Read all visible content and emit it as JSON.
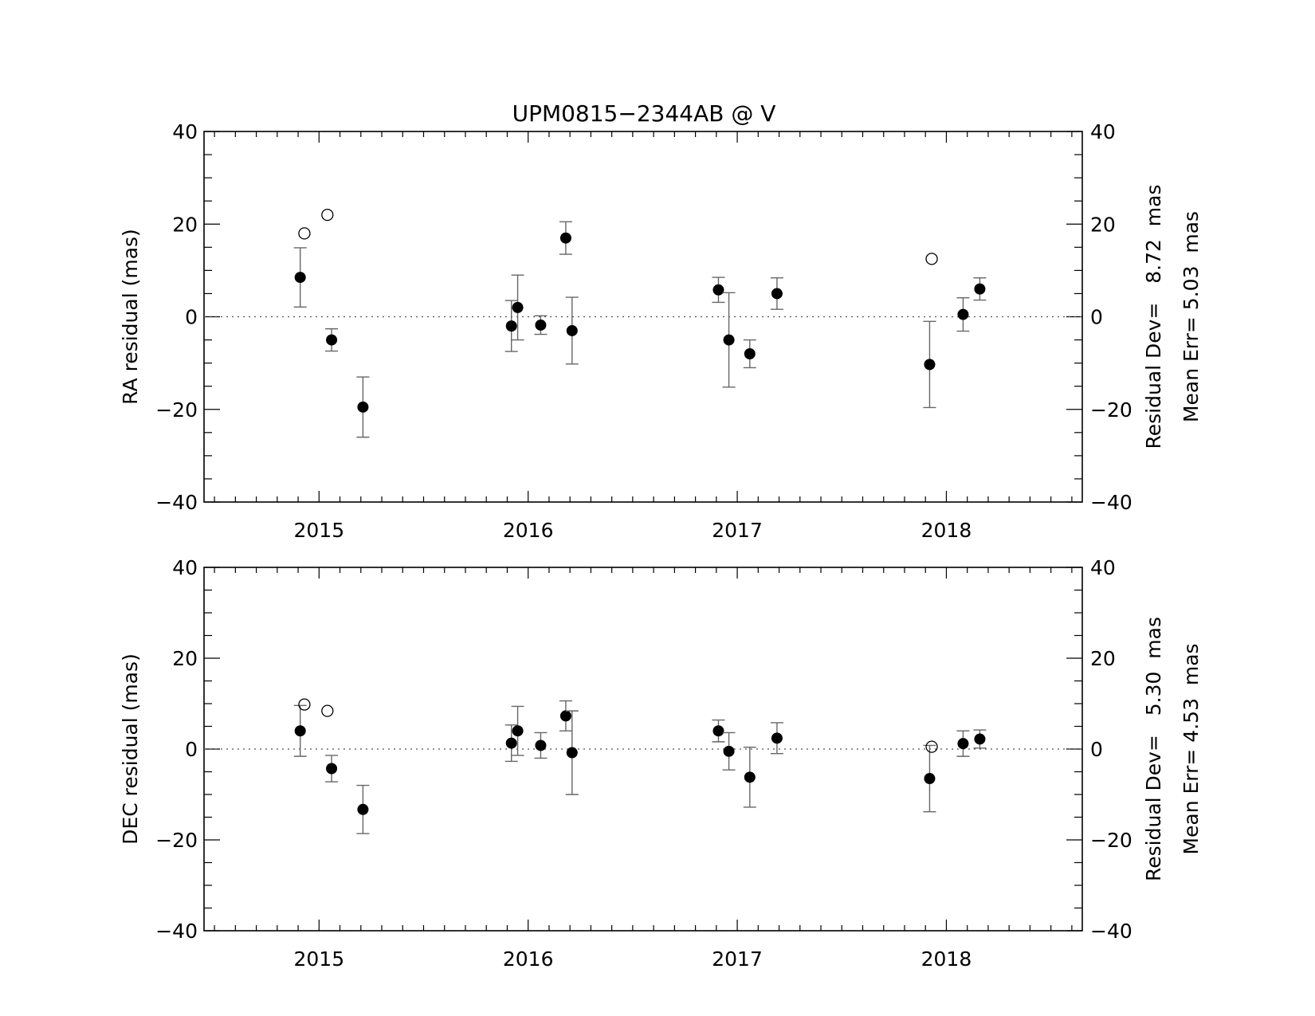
{
  "title": "UPM0815−2344AB @ V",
  "chart_data": [
    {
      "type": "scatter",
      "ylabel": "RA residual (mas)",
      "xlim": [
        2014.45,
        2018.65
      ],
      "ylim": [
        -40,
        40
      ],
      "x_ticks": [
        2015,
        2016,
        2017,
        2018
      ],
      "y_ticks": [
        -40,
        -20,
        0,
        20,
        40
      ],
      "y_tick_labels": [
        "−40",
        "−20",
        "0",
        "20",
        "40"
      ],
      "zero_line": true,
      "stat_residual": "Residual Dev=   8.72  mas",
      "stat_mean_err": "Mean Err= 5.03  mas",
      "filled_points": [
        {
          "x": 2014.91,
          "y": 8.5,
          "err": 6.4
        },
        {
          "x": 2015.06,
          "y": -5.0,
          "err": 2.4
        },
        {
          "x": 2015.21,
          "y": -19.5,
          "err": 6.5
        },
        {
          "x": 2015.92,
          "y": -2.0,
          "err": 5.5
        },
        {
          "x": 2015.95,
          "y": 2.0,
          "err": 7.0
        },
        {
          "x": 2016.06,
          "y": -1.8,
          "err": 2.0
        },
        {
          "x": 2016.18,
          "y": 17.0,
          "err": 3.5
        },
        {
          "x": 2016.21,
          "y": -3.0,
          "err": 7.2
        },
        {
          "x": 2016.91,
          "y": 5.8,
          "err": 2.7
        },
        {
          "x": 2016.96,
          "y": -5.0,
          "err": 10.2
        },
        {
          "x": 2017.06,
          "y": -8.0,
          "err": 3.0
        },
        {
          "x": 2017.19,
          "y": 5.0,
          "err": 3.4
        },
        {
          "x": 2017.92,
          "y": -10.3,
          "err": 9.3
        },
        {
          "x": 2018.08,
          "y": 0.5,
          "err": 3.6
        },
        {
          "x": 2018.16,
          "y": 6.0,
          "err": 2.4
        }
      ],
      "open_points": [
        {
          "x": 2014.93,
          "y": 18.0
        },
        {
          "x": 2015.04,
          "y": 22.0
        },
        {
          "x": 2017.93,
          "y": 12.5
        }
      ]
    },
    {
      "type": "scatter",
      "ylabel": "DEC residual (mas)",
      "xlim": [
        2014.45,
        2018.65
      ],
      "ylim": [
        -40,
        40
      ],
      "x_ticks": [
        2015,
        2016,
        2017,
        2018
      ],
      "y_ticks": [
        -40,
        -20,
        0,
        20,
        40
      ],
      "y_tick_labels": [
        "−40",
        "−20",
        "0",
        "20",
        "40"
      ],
      "zero_line": true,
      "stat_residual": "Residual Dev=   5.30  mas",
      "stat_mean_err": "Mean Err= 4.53  mas",
      "filled_points": [
        {
          "x": 2014.91,
          "y": 4.0,
          "err": 5.6
        },
        {
          "x": 2015.06,
          "y": -4.3,
          "err": 2.9
        },
        {
          "x": 2015.21,
          "y": -13.3,
          "err": 5.3
        },
        {
          "x": 2015.92,
          "y": 1.3,
          "err": 4.0
        },
        {
          "x": 2015.95,
          "y": 4.0,
          "err": 5.4
        },
        {
          "x": 2016.06,
          "y": 0.8,
          "err": 2.8
        },
        {
          "x": 2016.18,
          "y": 7.3,
          "err": 3.3
        },
        {
          "x": 2016.21,
          "y": -0.8,
          "err": 9.2
        },
        {
          "x": 2016.91,
          "y": 4.0,
          "err": 2.4
        },
        {
          "x": 2016.96,
          "y": -0.5,
          "err": 4.1
        },
        {
          "x": 2017.06,
          "y": -6.2,
          "err": 6.6
        },
        {
          "x": 2017.19,
          "y": 2.4,
          "err": 3.4
        },
        {
          "x": 2017.92,
          "y": -6.5,
          "err": 7.3
        },
        {
          "x": 2018.08,
          "y": 1.2,
          "err": 2.8
        },
        {
          "x": 2018.16,
          "y": 2.2,
          "err": 2.0
        }
      ],
      "open_points": [
        {
          "x": 2014.93,
          "y": 9.8
        },
        {
          "x": 2015.04,
          "y": 8.4
        },
        {
          "x": 2017.93,
          "y": 0.5
        }
      ]
    }
  ]
}
